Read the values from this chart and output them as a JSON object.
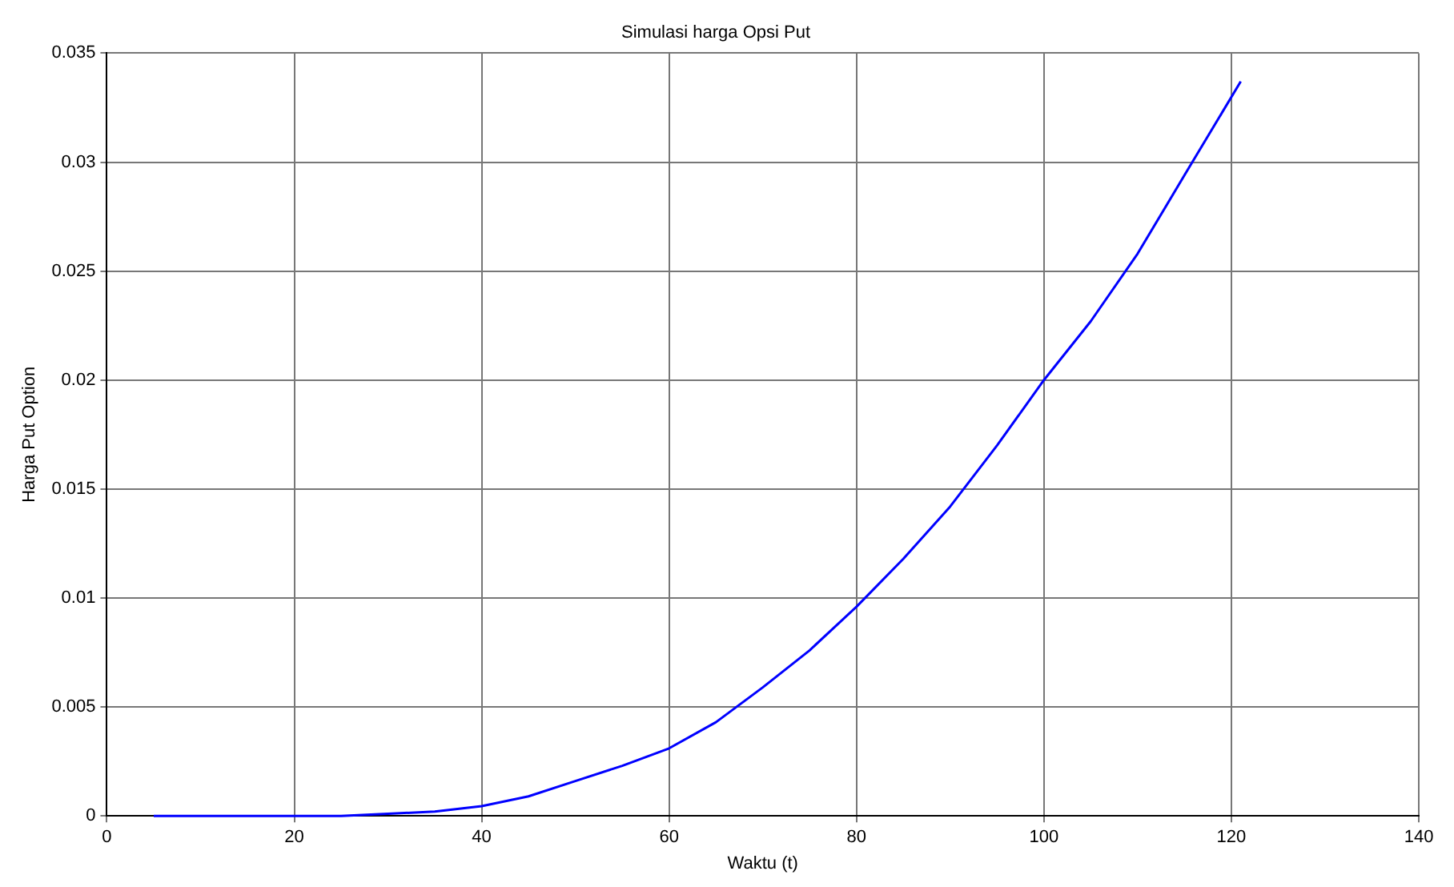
{
  "chart_data": {
    "type": "line",
    "title": "Simulasi harga Opsi Put",
    "xlabel": "Waktu (t)",
    "ylabel": "Harga Put Option",
    "x": [
      5,
      10,
      20,
      25,
      30,
      35,
      40,
      45,
      50,
      55,
      60,
      65,
      70,
      75,
      80,
      85,
      90,
      95,
      100,
      105,
      110,
      115,
      121
    ],
    "series": [
      {
        "color": "#0000ff",
        "values": [
          0,
          0,
          0,
          0,
          0.0001,
          0.0002,
          0.00045,
          0.0009,
          0.0016,
          0.0023,
          0.0031,
          0.0043,
          0.0059,
          0.0076,
          0.0096,
          0.0118,
          0.0142,
          0.017,
          0.02,
          0.0227,
          0.0258,
          0.0294,
          0.0337
        ]
      }
    ],
    "xlim": [
      0,
      140
    ],
    "xticks": [
      0,
      20,
      40,
      60,
      80,
      100,
      120,
      140
    ],
    "ylim": [
      0,
      0.035
    ],
    "yticks": [
      0,
      0.005,
      0.01,
      0.015,
      0.02,
      0.025,
      0.03,
      0.035
    ],
    "grid": true,
    "legend": false,
    "marker": "none",
    "line_style": "solid"
  }
}
